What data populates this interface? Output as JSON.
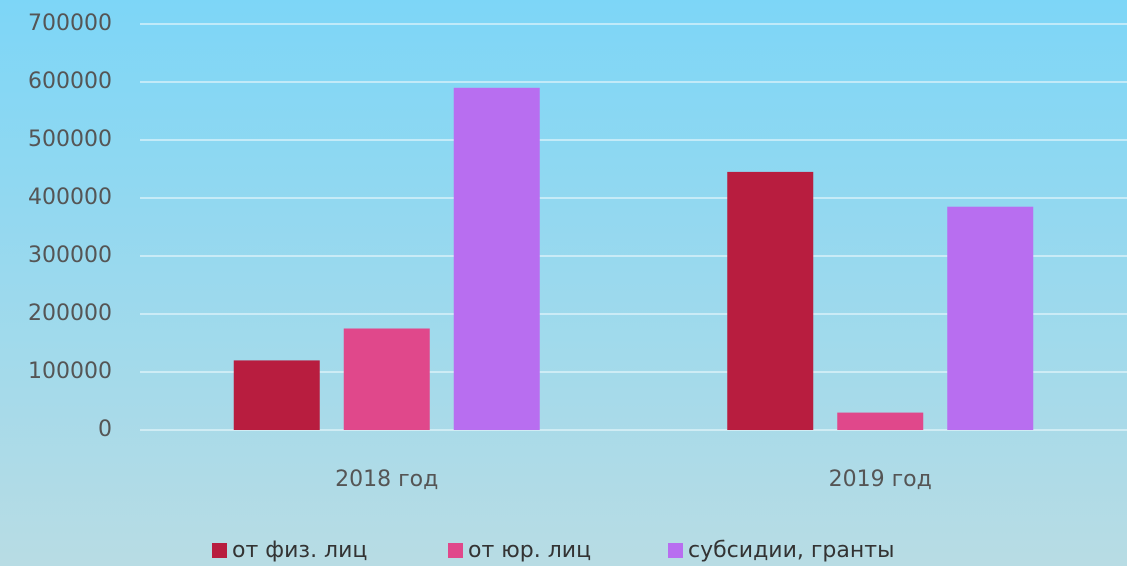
{
  "chart_data": {
    "type": "bar",
    "categories": [
      "2018 год",
      "2019 год"
    ],
    "series": [
      {
        "name": "от физ. лиц",
        "color": "#b81d3f",
        "values": [
          120000,
          445000
        ]
      },
      {
        "name": "от юр. лиц",
        "color": "#e0488b",
        "values": [
          175000,
          30000
        ]
      },
      {
        "name": "субсидии, гранты",
        "color": "#b86ef0",
        "values": [
          590000,
          385000
        ]
      }
    ],
    "ylim": [
      0,
      700000
    ],
    "yticks": [
      0,
      100000,
      200000,
      300000,
      400000,
      500000,
      600000,
      700000
    ],
    "grid": true,
    "legend": "bottom"
  }
}
